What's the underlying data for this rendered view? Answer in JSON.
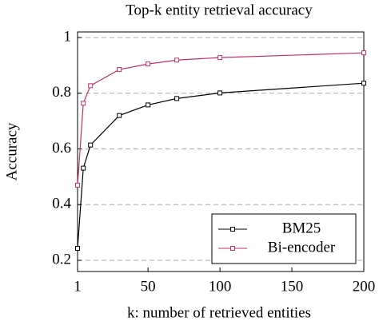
{
  "chart_data": {
    "type": "line",
    "title": "Top-k entity retrieval accuracy",
    "xlabel": "k: number of retrieved entities",
    "ylabel": "Accuracy",
    "x": [
      1,
      5,
      10,
      30,
      50,
      70,
      100,
      200
    ],
    "series": [
      {
        "name": "BM25",
        "color": "#000000",
        "values": [
          0.243,
          0.531,
          0.614,
          0.72,
          0.758,
          0.781,
          0.801,
          0.836
        ]
      },
      {
        "name": "Bi-encoder",
        "color": "#c0306a",
        "values": [
          0.47,
          0.764,
          0.827,
          0.885,
          0.905,
          0.919,
          0.928,
          0.945
        ]
      }
    ],
    "xlim": [
      1,
      200
    ],
    "ylim": [
      0.16,
      1.02
    ],
    "xticks": [
      1,
      50,
      100,
      150,
      200
    ],
    "yticks": [
      0.2,
      0.4,
      0.6,
      0.8,
      1
    ],
    "grid": true,
    "legend": "lower right"
  }
}
